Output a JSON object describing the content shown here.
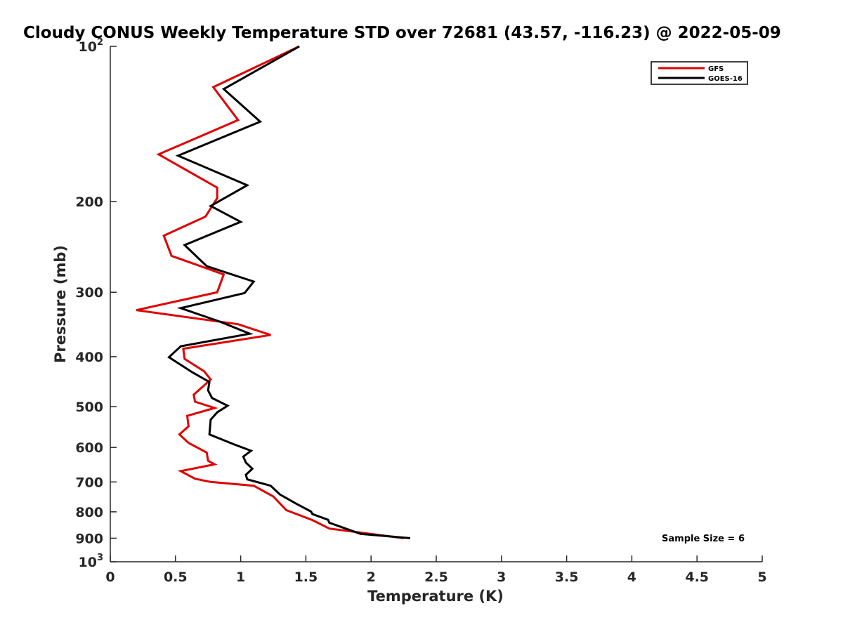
{
  "chart_data": {
    "type": "line",
    "title": "Cloudy CONUS Weekly Temperature STD over 72681 (43.57, -116.23) @ 2022-05-09",
    "xlabel": "Temperature (K)",
    "ylabel": "Pressure (mb)",
    "xlim": [
      0,
      5
    ],
    "ylim": [
      100,
      1000
    ],
    "yscale": "log",
    "y_reversed": true,
    "x_ticks": [
      "0",
      "0.5",
      "1",
      "1.5",
      "2",
      "2.5",
      "3",
      "3.5",
      "4",
      "4.5",
      "5"
    ],
    "y_ticks": [
      {
        "value": 100,
        "label": "10",
        "sup": "2"
      },
      {
        "value": 200,
        "label": "200",
        "sup": ""
      },
      {
        "value": 300,
        "label": "300",
        "sup": ""
      },
      {
        "value": 400,
        "label": "400",
        "sup": ""
      },
      {
        "value": 500,
        "label": "500",
        "sup": ""
      },
      {
        "value": 600,
        "label": "600",
        "sup": ""
      },
      {
        "value": 700,
        "label": "700",
        "sup": ""
      },
      {
        "value": 800,
        "label": "800",
        "sup": ""
      },
      {
        "value": 900,
        "label": "900",
        "sup": ""
      },
      {
        "value": 1000,
        "label": "10",
        "sup": "3"
      }
    ],
    "grid": false,
    "legend_position": "top-right",
    "annotation": "Sample Size = 6",
    "series": [
      {
        "name": "GFS",
        "color": "#e00000",
        "points": [
          [
            1.45,
            100
          ],
          [
            0.79,
            120
          ],
          [
            0.98,
            139
          ],
          [
            0.37,
            162
          ],
          [
            0.82,
            188
          ],
          [
            0.82,
            197
          ],
          [
            0.73,
            214
          ],
          [
            0.41,
            233
          ],
          [
            0.47,
            255
          ],
          [
            0.87,
            277
          ],
          [
            0.82,
            300
          ],
          [
            0.2,
            325
          ],
          [
            0.98,
            346
          ],
          [
            1.23,
            363
          ],
          [
            0.56,
            386
          ],
          [
            0.57,
            404
          ],
          [
            0.72,
            427
          ],
          [
            0.77,
            443
          ],
          [
            0.64,
            474
          ],
          [
            0.65,
            489
          ],
          [
            0.8,
            503
          ],
          [
            0.59,
            521
          ],
          [
            0.6,
            546
          ],
          [
            0.53,
            566
          ],
          [
            0.6,
            588
          ],
          [
            0.74,
            614
          ],
          [
            0.75,
            637
          ],
          [
            0.8,
            647
          ],
          [
            0.54,
            667
          ],
          [
            0.65,
            690
          ],
          [
            0.77,
            700
          ],
          [
            1.1,
            712
          ],
          [
            1.25,
            747
          ],
          [
            1.35,
            794
          ],
          [
            1.55,
            830
          ],
          [
            1.68,
            862
          ],
          [
            2.25,
            900
          ]
        ]
      },
      {
        "name": "GOES-16",
        "color": "#000000",
        "points": [
          [
            1.45,
            100
          ],
          [
            0.87,
            121
          ],
          [
            1.15,
            140
          ],
          [
            0.52,
            163
          ],
          [
            1.05,
            186
          ],
          [
            0.77,
            204
          ],
          [
            1.0,
            219
          ],
          [
            0.57,
            243
          ],
          [
            0.74,
            267
          ],
          [
            1.1,
            286
          ],
          [
            1.03,
            301
          ],
          [
            0.54,
            322
          ],
          [
            0.84,
            342
          ],
          [
            1.07,
            361
          ],
          [
            0.54,
            382
          ],
          [
            0.45,
            401
          ],
          [
            0.63,
            429
          ],
          [
            0.76,
            448
          ],
          [
            0.75,
            465
          ],
          [
            0.78,
            481
          ],
          [
            0.9,
            498
          ],
          [
            0.82,
            513
          ],
          [
            0.77,
            530
          ],
          [
            0.76,
            566
          ],
          [
            0.95,
            592
          ],
          [
            1.08,
            609
          ],
          [
            1.02,
            625
          ],
          [
            1.04,
            642
          ],
          [
            1.09,
            660
          ],
          [
            1.04,
            678
          ],
          [
            1.05,
            692
          ],
          [
            1.23,
            712
          ],
          [
            1.3,
            740
          ],
          [
            1.42,
            770
          ],
          [
            1.54,
            799
          ],
          [
            1.55,
            808
          ],
          [
            1.67,
            829
          ],
          [
            1.68,
            840
          ],
          [
            1.92,
            883
          ],
          [
            2.3,
            900
          ]
        ]
      }
    ]
  }
}
